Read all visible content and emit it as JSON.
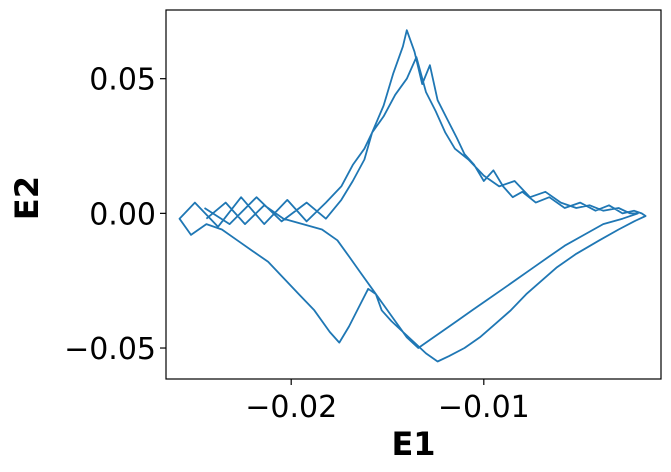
{
  "chart_data": {
    "type": "line",
    "title": "",
    "xlabel": "E1",
    "ylabel": "E2",
    "xlim": [
      -0.0265,
      -0.0008
    ],
    "ylim": [
      -0.0615,
      0.0755
    ],
    "x_ticks": [
      {
        "value": -0.02,
        "label": "−0.02"
      },
      {
        "value": -0.01,
        "label": "−0.01"
      }
    ],
    "y_ticks": [
      {
        "value": 0.05,
        "label": "0.05"
      },
      {
        "value": 0.0,
        "label": "0.00"
      },
      {
        "value": -0.05,
        "label": "−0.05"
      }
    ],
    "grid": false,
    "series": [
      {
        "color": "#1f77b4",
        "x": [
          -0.0245,
          -0.0232,
          -0.0218,
          -0.0205,
          -0.0192,
          -0.0182,
          -0.0174,
          -0.0168,
          -0.0162,
          -0.0158,
          -0.0152,
          -0.0147,
          -0.0142,
          -0.014,
          -0.0136,
          -0.0132,
          -0.0128,
          -0.0124,
          -0.0119,
          -0.0114,
          -0.011,
          -0.0105,
          -0.01,
          -0.0095,
          -0.009,
          -0.0085,
          -0.008,
          -0.0073,
          -0.0066,
          -0.0058,
          -0.005,
          -0.0042,
          -0.0035,
          -0.0028,
          -0.0022,
          -0.0018,
          -0.0016,
          -0.0022,
          -0.003,
          -0.004,
          -0.0052,
          -0.0062,
          -0.007,
          -0.0078,
          -0.0086,
          -0.0094,
          -0.0102,
          -0.011,
          -0.0118,
          -0.0124,
          -0.013,
          -0.0136,
          -0.0142,
          -0.0148,
          -0.0153,
          -0.0156,
          -0.016,
          -0.0165,
          -0.017,
          -0.0175,
          -0.018,
          -0.0188,
          -0.0196,
          -0.0204,
          -0.0212,
          -0.022,
          -0.0228,
          -0.0236,
          -0.0244,
          -0.0252,
          -0.0258,
          -0.025,
          -0.0238,
          -0.0226,
          -0.0214,
          -0.0202,
          -0.0192,
          -0.0182,
          -0.0174,
          -0.0168,
          -0.0162,
          -0.0158,
          -0.0152,
          -0.0146,
          -0.014,
          -0.0135,
          -0.013,
          -0.0125,
          -0.012,
          -0.0115,
          -0.0108,
          -0.01,
          -0.0092,
          -0.0084,
          -0.0076,
          -0.0068,
          -0.006,
          -0.0052,
          -0.0045,
          -0.0038,
          -0.003,
          -0.0024,
          -0.002,
          -0.0028,
          -0.0038,
          -0.0048,
          -0.0058,
          -0.0066,
          -0.0074,
          -0.0082,
          -0.009,
          -0.0098,
          -0.0106,
          -0.0114,
          -0.0122,
          -0.0128,
          -0.0134,
          -0.014,
          -0.0146,
          -0.0152,
          -0.0158,
          -0.0164,
          -0.017,
          -0.0176,
          -0.0184,
          -0.0194,
          -0.0204,
          -0.0214,
          -0.0224,
          -0.0234,
          -0.0244
        ],
        "y": [
          0.002,
          -0.004,
          0.006,
          -0.003,
          0.004,
          -0.002,
          0.005,
          0.012,
          0.02,
          0.03,
          0.04,
          0.052,
          0.062,
          0.068,
          0.06,
          0.048,
          0.055,
          0.042,
          0.035,
          0.028,
          0.022,
          0.018,
          0.012,
          0.016,
          0.01,
          0.006,
          0.008,
          0.004,
          0.006,
          0.002,
          0.004,
          0.001,
          0.003,
          0.0,
          0.001,
          0.0,
          -0.001,
          -0.003,
          -0.006,
          -0.01,
          -0.015,
          -0.02,
          -0.025,
          -0.03,
          -0.036,
          -0.041,
          -0.046,
          -0.05,
          -0.053,
          -0.055,
          -0.052,
          -0.048,
          -0.044,
          -0.04,
          -0.036,
          -0.03,
          -0.028,
          -0.035,
          -0.042,
          -0.048,
          -0.044,
          -0.036,
          -0.03,
          -0.024,
          -0.018,
          -0.014,
          -0.01,
          -0.006,
          -0.004,
          -0.008,
          -0.002,
          0.004,
          -0.005,
          0.006,
          -0.004,
          0.005,
          -0.003,
          0.004,
          0.01,
          0.018,
          0.024,
          0.03,
          0.036,
          0.044,
          0.05,
          0.058,
          0.045,
          0.038,
          0.03,
          0.024,
          0.02,
          0.014,
          0.01,
          0.012,
          0.006,
          0.008,
          0.004,
          0.002,
          0.003,
          0.001,
          0.002,
          0.0,
          0.0,
          -0.002,
          -0.004,
          -0.008,
          -0.012,
          -0.016,
          -0.02,
          -0.024,
          -0.028,
          -0.032,
          -0.036,
          -0.04,
          -0.044,
          -0.047,
          -0.05,
          -0.046,
          -0.04,
          -0.034,
          -0.028,
          -0.022,
          -0.016,
          -0.01,
          -0.006,
          -0.004,
          -0.002,
          0.003,
          -0.004,
          0.004,
          -0.002
        ]
      }
    ]
  }
}
